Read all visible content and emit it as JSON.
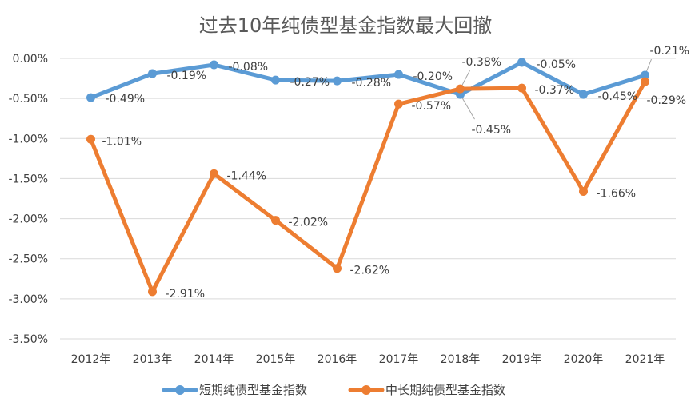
{
  "chart_data": {
    "type": "line",
    "title": "过去10年纯债型基金指数最大回撤",
    "xlabel": "",
    "ylabel": "",
    "categories": [
      "2012年",
      "2013年",
      "2014年",
      "2015年",
      "2016年",
      "2017年",
      "2018年",
      "2019年",
      "2020年",
      "2021年"
    ],
    "ylim": [
      -3.5,
      0
    ],
    "yticks": [
      "0.00%",
      "-0.50%",
      "-1.00%",
      "-1.50%",
      "-2.00%",
      "-2.50%",
      "-3.00%",
      "-3.50%"
    ],
    "grid": true,
    "legend_position": "bottom",
    "series": [
      {
        "name": "短期纯债型基金指数",
        "color": "#5b9bd5",
        "values": [
          -0.49,
          -0.19,
          -0.08,
          -0.27,
          -0.28,
          -0.2,
          -0.45,
          -0.05,
          -0.45,
          -0.21
        ],
        "labels": [
          "-0.49%",
          "-0.19%",
          "-0.08%",
          "-0.27%",
          "-0.28%",
          "-0.20%",
          "-0.45%",
          "-0.05%",
          "-0.45%",
          "-0.21%"
        ]
      },
      {
        "name": "中长期纯债型基金指数",
        "color": "#ed7d31",
        "values": [
          -1.01,
          -2.91,
          -1.44,
          -2.02,
          -2.62,
          -0.57,
          -0.38,
          -0.37,
          -1.66,
          -0.29
        ],
        "labels": [
          "-1.01%",
          "-2.91%",
          "-1.44%",
          "-2.02%",
          "-2.62%",
          "-0.57%",
          "-0.38%",
          "-0.37%",
          "-1.66%",
          "-0.29%"
        ]
      }
    ]
  }
}
